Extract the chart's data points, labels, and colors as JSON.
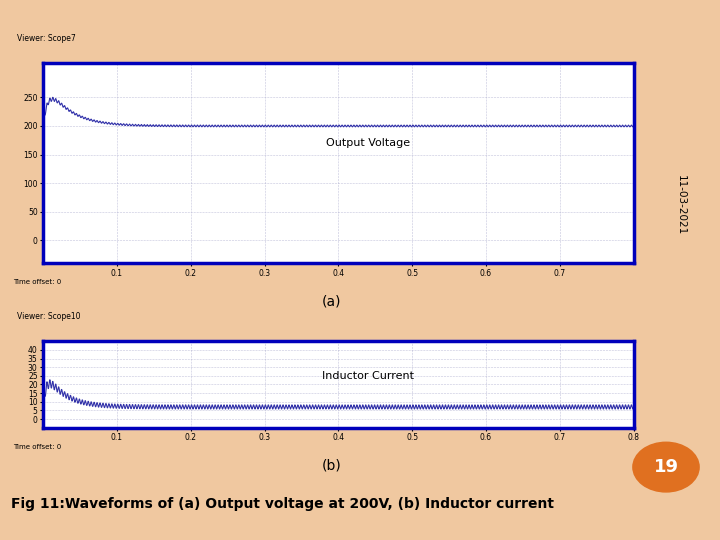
{
  "background_color": "#f0c8a0",
  "scope_bg": "#e8e8e8",
  "plot_bg": "#ffffff",
  "scope_border_color": "#0000bb",
  "scope_line_color": "#3333aa",
  "titlebar_bg": "#b8cce4",
  "titlebar_text": "#000000",
  "toolbar_bg": "#d4d0c8",
  "plot_a_label": "Output Voltage",
  "plot_b_label": "Inductor Current",
  "label_a": "(a)",
  "label_b": "(b)",
  "caption": "Fig 11:Waveforms of (a) Output voltage at 200V, (b) Inductor current",
  "date_text": "11-03-2021",
  "page_num": "19",
  "page_num_bg": "#e07020",
  "scope7_title": "Viewer: Scope7",
  "scope10_title": "Viewer: Scope10",
  "time_offset_text": "Time offset: 0",
  "voltage_ylim": [
    -40,
    310
  ],
  "voltage_yticks": [
    0,
    50,
    100,
    150,
    200,
    250
  ],
  "current_ylim": [
    -5,
    45
  ],
  "current_yticks": [
    0,
    5,
    10,
    15,
    20,
    25,
    30,
    35,
    40
  ],
  "time_xlim": [
    0,
    0.8
  ],
  "time_xticks_a": [
    0.1,
    0.2,
    0.3,
    0.4,
    0.5,
    0.6,
    0.7
  ],
  "time_xticks_b": [
    0.1,
    0.2,
    0.3,
    0.4,
    0.5,
    0.6,
    0.7,
    0.8
  ]
}
